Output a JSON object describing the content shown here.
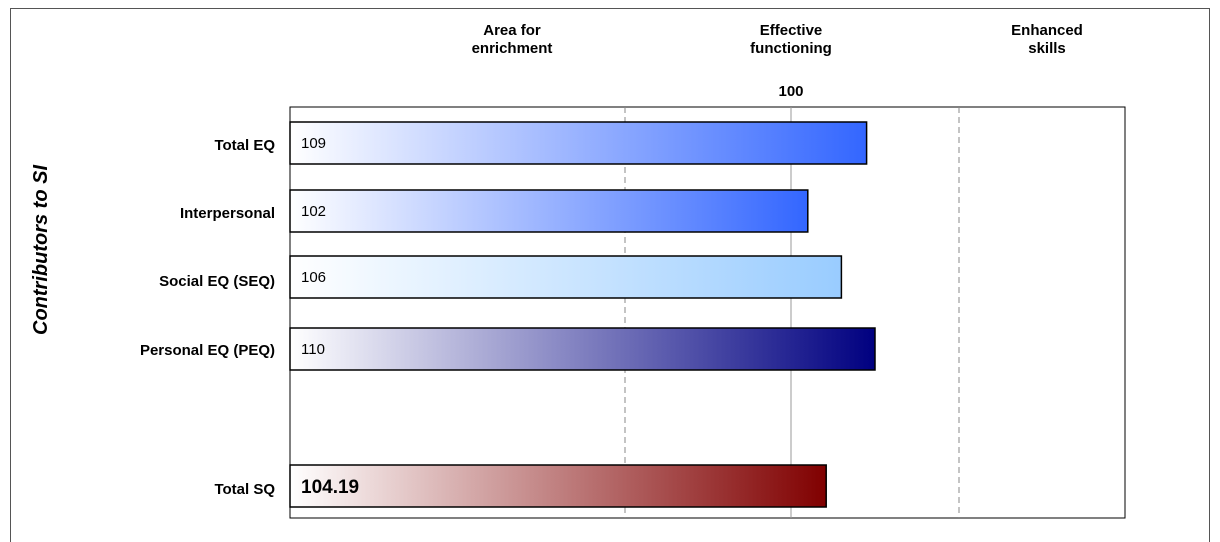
{
  "chart_data": {
    "type": "bar",
    "orientation": "horizontal",
    "ylabel": "Contributors to SI",
    "xlim": [
      60,
      140
    ],
    "reference_value": 100,
    "reference_label": "100",
    "bands": [
      {
        "label": "Area for enrichment",
        "lines": [
          "Area for",
          "enrichment"
        ],
        "from": 60,
        "to": 80
      },
      {
        "label": "Effective functioning",
        "lines": [
          "Effective",
          "functioning"
        ],
        "from": 80,
        "to": 100
      },
      {
        "label": "Enhanced skills",
        "lines": [
          "Enhanced",
          "skills"
        ],
        "from": 120,
        "to": 140
      }
    ],
    "band_dividers": [
      80,
      100,
      120
    ],
    "grid": false,
    "legend": "none",
    "categories": [
      "Total EQ",
      "Interpersonal",
      "Social EQ (SEQ)",
      "Personal EQ (PEQ)",
      "Total SQ"
    ],
    "values": [
      109,
      102,
      106,
      110,
      104.19
    ],
    "value_labels": [
      "109",
      "102",
      "106",
      "110",
      "104.19"
    ],
    "colors": [
      "#3366ff",
      "#3366ff",
      "#99ccff",
      "#000080",
      "#800000"
    ]
  }
}
